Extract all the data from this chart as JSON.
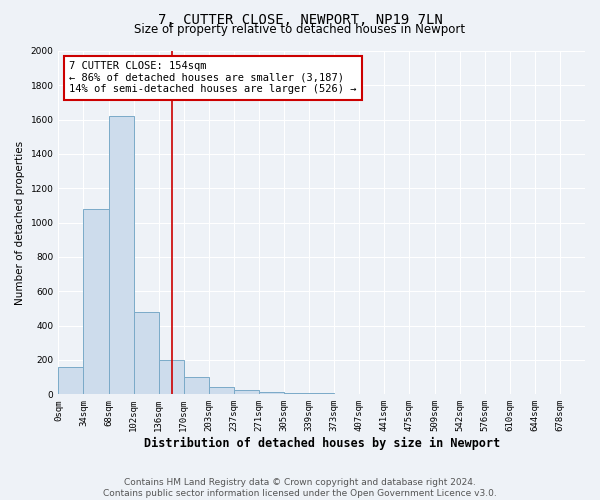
{
  "title": "7, CUTTER CLOSE, NEWPORT, NP19 7LN",
  "subtitle": "Size of property relative to detached houses in Newport",
  "xlabel": "Distribution of detached houses by size in Newport",
  "ylabel": "Number of detached properties",
  "categories": [
    "0sqm",
    "34sqm",
    "68sqm",
    "102sqm",
    "136sqm",
    "170sqm",
    "203sqm",
    "237sqm",
    "271sqm",
    "305sqm",
    "339sqm",
    "373sqm",
    "407sqm",
    "441sqm",
    "475sqm",
    "509sqm",
    "542sqm",
    "576sqm",
    "610sqm",
    "644sqm",
    "678sqm"
  ],
  "bar_values": [
    160,
    1080,
    1620,
    480,
    200,
    100,
    40,
    25,
    15,
    10,
    5,
    0,
    0,
    0,
    0,
    0,
    0,
    0,
    0,
    0,
    0
  ],
  "bar_color": "#cddcec",
  "bar_edgecolor": "#7aaac8",
  "bar_linewidth": 0.7,
  "vline_x": 4.54,
  "vline_color": "#cc0000",
  "vline_linewidth": 1.2,
  "ylim": [
    0,
    2000
  ],
  "yticks": [
    0,
    200,
    400,
    600,
    800,
    1000,
    1200,
    1400,
    1600,
    1800,
    2000
  ],
  "annotation_box_text": "7 CUTTER CLOSE: 154sqm\n← 86% of detached houses are smaller (3,187)\n14% of semi-detached houses are larger (526) →",
  "footer_text": "Contains HM Land Registry data © Crown copyright and database right 2024.\nContains public sector information licensed under the Open Government Licence v3.0.",
  "background_color": "#eef2f7",
  "grid_color": "#ffffff",
  "title_fontsize": 10,
  "subtitle_fontsize": 8.5,
  "ylabel_fontsize": 7.5,
  "xlabel_fontsize": 8.5,
  "tick_fontsize": 6.5,
  "annotation_fontsize": 7.5,
  "footer_fontsize": 6.5
}
